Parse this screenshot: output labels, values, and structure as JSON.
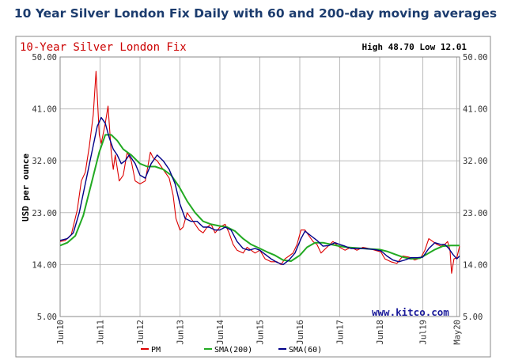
{
  "page_title": "10 Year Silver London Fix Daily with 60 and 200-day moving averages",
  "chart_data": {
    "type": "line",
    "title": "10-Year Silver London Fix",
    "range_text": "High 48.70 Low 12.01",
    "ylabel": "USD per ounce",
    "ylim": [
      5,
      50
    ],
    "y_ticks": [
      "50.00",
      "41.00",
      "32.00",
      "23.00",
      "14.00",
      "5.00"
    ],
    "y_tick_values": [
      50,
      41,
      32,
      23,
      14,
      5
    ],
    "x_ticks": [
      "Jun10",
      "Jun11",
      "Jun12",
      "Jun13",
      "Jun14",
      "Jun15",
      "Jun16",
      "Jun17",
      "Jun18",
      "Jul19",
      "May20"
    ],
    "x_tick_values": [
      2010.42,
      2011.42,
      2012.42,
      2013.42,
      2014.42,
      2015.42,
      2016.42,
      2017.42,
      2018.42,
      2019.5,
      2020.35
    ],
    "xlim": [
      2010.42,
      2020.42
    ],
    "watermark": "www.kitco.com",
    "colors": {
      "pm": "#dd0000",
      "sma200": "#22aa22",
      "sma60": "#000088",
      "title_red": "#cc0000",
      "frame": "#888888",
      "grid": "#bbbbbb"
    },
    "series": [
      {
        "name": "PM",
        "x": [
          2010.42,
          2010.55,
          2010.7,
          2010.85,
          2010.95,
          2011.05,
          2011.15,
          2011.25,
          2011.32,
          2011.4,
          2011.45,
          2011.55,
          2011.62,
          2011.7,
          2011.75,
          2011.8,
          2011.9,
          2012.0,
          2012.1,
          2012.2,
          2012.3,
          2012.42,
          2012.55,
          2012.68,
          2012.75,
          2012.85,
          2012.95,
          2013.05,
          2013.15,
          2013.25,
          2013.32,
          2013.42,
          2013.5,
          2013.6,
          2013.7,
          2013.8,
          2013.9,
          2014.0,
          2014.1,
          2014.2,
          2014.3,
          2014.42,
          2014.55,
          2014.65,
          2014.75,
          2014.85,
          2015.0,
          2015.1,
          2015.2,
          2015.3,
          2015.42,
          2015.55,
          2015.7,
          2015.85,
          2015.95,
          2016.05,
          2016.15,
          2016.25,
          2016.35,
          2016.45,
          2016.55,
          2016.65,
          2016.75,
          2016.85,
          2016.95,
          2017.1,
          2017.25,
          2017.42,
          2017.55,
          2017.7,
          2017.85,
          2018.0,
          2018.15,
          2018.3,
          2018.45,
          2018.55,
          2018.7,
          2018.85,
          2019.0,
          2019.15,
          2019.3,
          2019.45,
          2019.55,
          2019.65,
          2019.75,
          2019.85,
          2019.95,
          2020.05,
          2020.12,
          2020.18,
          2020.22,
          2020.28,
          2020.35,
          2020.42
        ],
        "values": [
          18.0,
          18.2,
          19.2,
          23.5,
          28.5,
          30.0,
          34.5,
          40.0,
          47.5,
          36.5,
          35.0,
          38.5,
          41.5,
          33.5,
          30.5,
          33.0,
          28.5,
          29.5,
          33.5,
          32.0,
          28.5,
          28.0,
          28.5,
          33.5,
          32.5,
          32.0,
          31.0,
          30.0,
          29.0,
          26.0,
          22.0,
          20.0,
          20.5,
          23.0,
          22.0,
          21.0,
          20.0,
          19.5,
          20.5,
          21.0,
          19.5,
          20.5,
          21.0,
          19.5,
          17.5,
          16.5,
          16.0,
          17.0,
          16.5,
          16.0,
          16.5,
          15.0,
          14.5,
          14.5,
          14.0,
          15.0,
          15.5,
          16.0,
          17.5,
          20.0,
          20.0,
          19.0,
          18.0,
          17.5,
          16.0,
          17.0,
          18.0,
          17.0,
          16.5,
          17.0,
          16.5,
          17.0,
          16.8,
          16.5,
          16.2,
          15.0,
          14.5,
          14.2,
          15.5,
          15.3,
          14.8,
          15.2,
          16.5,
          18.5,
          18.0,
          17.5,
          17.2,
          17.5,
          18.0,
          16.5,
          12.5,
          15.0,
          15.2,
          17.2
        ]
      },
      {
        "name": "SMA(200)",
        "x": [
          2010.42,
          2010.6,
          2010.8,
          2011.0,
          2011.2,
          2011.4,
          2011.55,
          2011.7,
          2011.85,
          2012.0,
          2012.2,
          2012.42,
          2012.6,
          2012.8,
          2013.0,
          2013.2,
          2013.4,
          2013.6,
          2013.8,
          2014.0,
          2014.2,
          2014.42,
          2014.6,
          2014.8,
          2015.0,
          2015.2,
          2015.42,
          2015.6,
          2015.8,
          2016.0,
          2016.2,
          2016.42,
          2016.6,
          2016.8,
          2017.0,
          2017.2,
          2017.42,
          2017.6,
          2017.8,
          2018.0,
          2018.2,
          2018.42,
          2018.6,
          2018.8,
          2019.0,
          2019.2,
          2019.42,
          2019.6,
          2019.8,
          2020.0,
          2020.2,
          2020.42
        ],
        "values": [
          17.3,
          17.8,
          19.0,
          22.5,
          28.0,
          33.5,
          36.5,
          36.5,
          35.5,
          34.0,
          33.0,
          31.5,
          31.0,
          31.0,
          30.5,
          29.5,
          27.5,
          25.0,
          23.0,
          21.5,
          21.0,
          20.7,
          20.5,
          19.8,
          18.5,
          17.5,
          16.8,
          16.2,
          15.6,
          14.8,
          14.6,
          15.6,
          17.0,
          17.8,
          17.8,
          17.5,
          17.2,
          17.0,
          16.9,
          16.8,
          16.7,
          16.6,
          16.3,
          15.8,
          15.3,
          15.0,
          15.1,
          15.8,
          16.6,
          17.2,
          17.3,
          17.3
        ]
      },
      {
        "name": "SMA(60)",
        "x": [
          2010.42,
          2010.6,
          2010.75,
          2010.9,
          2011.05,
          2011.2,
          2011.35,
          2011.45,
          2011.55,
          2011.65,
          2011.75,
          2011.85,
          2011.95,
          2012.05,
          2012.15,
          2012.3,
          2012.42,
          2012.55,
          2012.7,
          2012.85,
          2013.0,
          2013.15,
          2013.3,
          2013.42,
          2013.55,
          2013.7,
          2013.85,
          2014.0,
          2014.15,
          2014.3,
          2014.42,
          2014.55,
          2014.7,
          2014.85,
          2015.0,
          2015.15,
          2015.3,
          2015.42,
          2015.55,
          2015.7,
          2015.85,
          2016.0,
          2016.15,
          2016.3,
          2016.45,
          2016.55,
          2016.7,
          2016.85,
          2017.0,
          2017.15,
          2017.3,
          2017.42,
          2017.55,
          2017.7,
          2017.85,
          2018.0,
          2018.15,
          2018.3,
          2018.45,
          2018.6,
          2018.75,
          2018.9,
          2019.05,
          2019.2,
          2019.35,
          2019.5,
          2019.65,
          2019.8,
          2019.95,
          2020.05,
          2020.15,
          2020.25,
          2020.35,
          2020.42
        ],
        "values": [
          18.2,
          18.5,
          19.5,
          23.0,
          28.0,
          33.0,
          38.0,
          39.5,
          38.5,
          36.0,
          34.0,
          33.0,
          31.5,
          32.0,
          33.0,
          31.5,
          29.5,
          29.0,
          31.5,
          33.0,
          32.0,
          30.5,
          28.0,
          24.5,
          22.0,
          21.5,
          21.5,
          20.5,
          20.5,
          20.0,
          20.0,
          20.5,
          20.0,
          18.0,
          16.8,
          16.5,
          16.8,
          16.5,
          15.8,
          15.0,
          14.4,
          14.0,
          14.8,
          16.0,
          18.5,
          19.8,
          19.0,
          18.2,
          17.2,
          17.3,
          17.8,
          17.5,
          17.2,
          16.8,
          16.8,
          16.8,
          16.7,
          16.6,
          16.4,
          15.5,
          14.8,
          14.5,
          14.8,
          15.2,
          15.2,
          15.3,
          16.8,
          17.8,
          17.5,
          17.5,
          16.8,
          15.8,
          15.0,
          15.5
        ]
      }
    ]
  }
}
